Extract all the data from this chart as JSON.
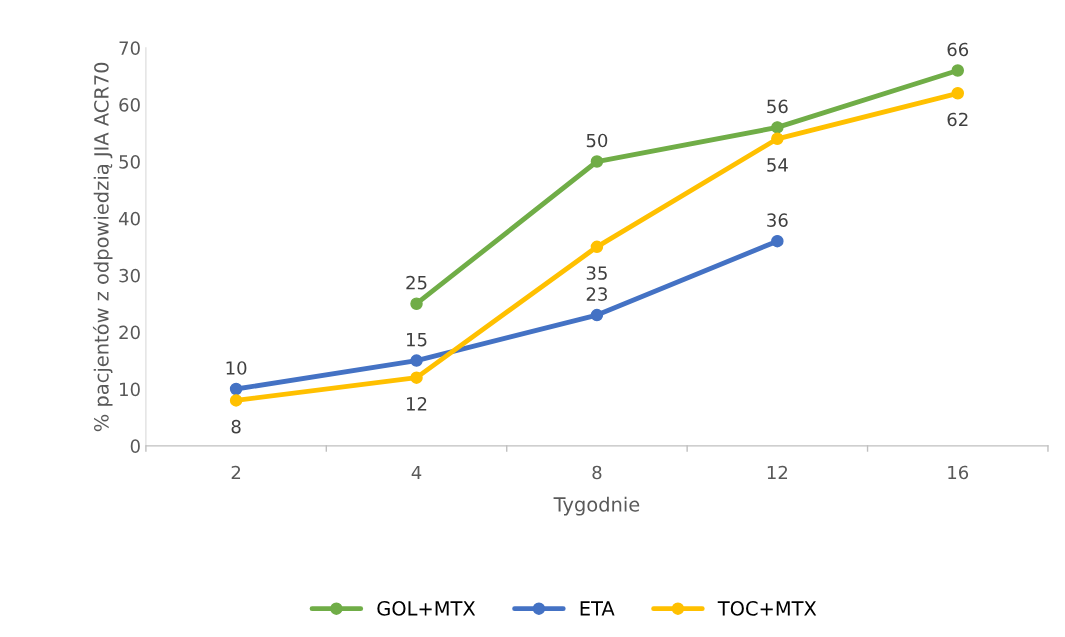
{
  "chart_data": {
    "type": "line",
    "xlabel": "Tygodnie",
    "ylabel": "% pacjentów z odpowiedzią JIA ACR70",
    "categories": [
      "2",
      "4",
      "8",
      "12",
      "16"
    ],
    "series": [
      {
        "name": "GOL+MTX",
        "color": "#70ad47",
        "values": [
          null,
          25,
          50,
          56,
          66
        ]
      },
      {
        "name": "ETA",
        "color": "#4472c4",
        "values": [
          10,
          15,
          23,
          36,
          null
        ]
      },
      {
        "name": "TOC+MTX",
        "color": "#ffc000",
        "values": [
          8,
          12,
          35,
          54,
          62
        ]
      }
    ],
    "ylim": [
      0,
      70
    ],
    "yticks": [
      0,
      10,
      20,
      30,
      40,
      50,
      60,
      70
    ],
    "data_labels": true,
    "grid": false,
    "legend": "bottom",
    "marker": "circle",
    "line_style": "solid"
  }
}
